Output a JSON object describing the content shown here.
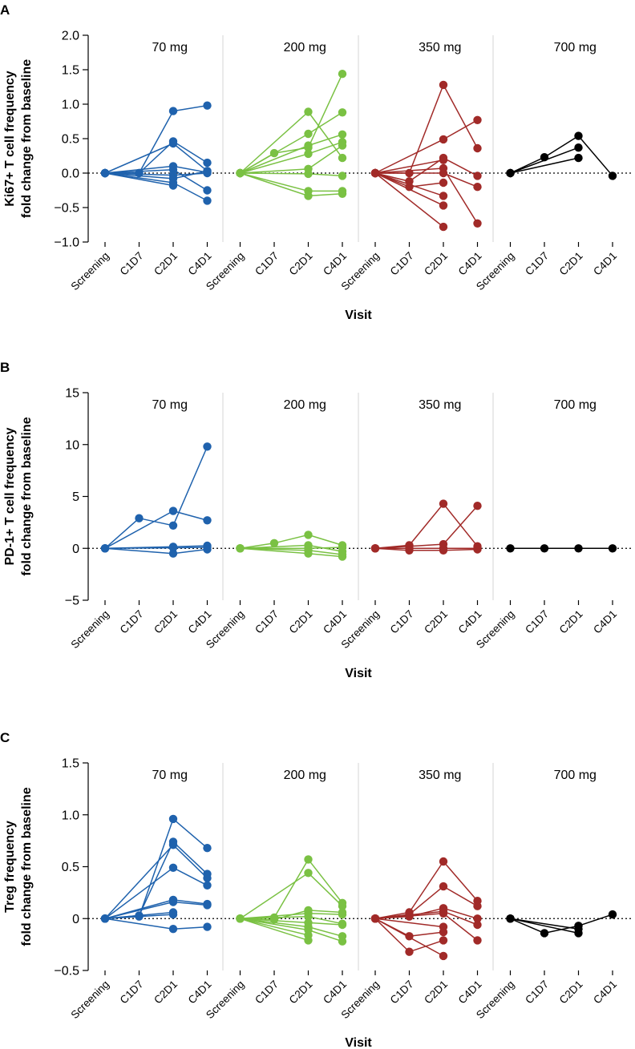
{
  "chart_data": [
    {
      "type": "line",
      "panel_label": "A",
      "ylabel_lines": [
        "Ki67+ T cell frequency",
        "fold change from baseline"
      ],
      "xlabel": "Visit",
      "ylim": [
        -1.0,
        2.0
      ],
      "yticks": [
        2.0,
        1.5,
        1.0,
        0.5,
        0.0,
        -0.5,
        -1.0
      ],
      "ytick_labels": [
        "2.0",
        "1.5",
        "1.0",
        "0.5",
        "0.0",
        "−0.5",
        "−1.0"
      ],
      "visits": [
        "Screening",
        "C1D7",
        "C2D1",
        "C4D1"
      ],
      "groups": [
        {
          "dose": "70 mg",
          "color": "#1f62ad",
          "series": [
            [
              0,
              0.0,
              0.9,
              0.98
            ],
            [
              0,
              0.0,
              0.46,
              0.15
            ],
            [
              0,
              null,
              0.43,
              0.03
            ],
            [
              0,
              null,
              0.1,
              0.01
            ],
            [
              0,
              null,
              0.05,
              -0.25
            ],
            [
              0,
              null,
              -0.03,
              0.0
            ],
            [
              0,
              null,
              -0.08,
              0.03
            ],
            [
              0,
              null,
              -0.14,
              -0.4
            ],
            [
              0,
              null,
              -0.18,
              null
            ]
          ]
        },
        {
          "dose": "200 mg",
          "color": "#7ac143",
          "series": [
            [
              0,
              0.29,
              0.37,
              1.44
            ],
            [
              0,
              null,
              0.89,
              0.22
            ],
            [
              0,
              null,
              0.57,
              0.88
            ],
            [
              0,
              null,
              0.4,
              0.56
            ],
            [
              0,
              null,
              0.28,
              0.45
            ],
            [
              0,
              null,
              0.06,
              0.4
            ],
            [
              0,
              null,
              -0.01,
              -0.04
            ],
            [
              0,
              null,
              -0.26,
              -0.26
            ],
            [
              0,
              null,
              -0.33,
              -0.3
            ]
          ]
        },
        {
          "dose": "350 mg",
          "color": "#a12a28",
          "series": [
            [
              0,
              0.0,
              1.28,
              0.36
            ],
            [
              0,
              null,
              0.49,
              0.77
            ],
            [
              0,
              -0.12,
              0.22,
              -0.04
            ],
            [
              0,
              null,
              0.19,
              null
            ],
            [
              0,
              null,
              0.07,
              -0.73
            ],
            [
              0,
              null,
              0.0,
              -0.2
            ],
            [
              0,
              -0.2,
              -0.14,
              null
            ],
            [
              0,
              null,
              -0.33,
              null
            ],
            [
              0,
              null,
              -0.47,
              null
            ],
            [
              0,
              null,
              -0.78,
              null
            ]
          ]
        },
        {
          "dose": "700 mg",
          "color": "#000000",
          "series": [
            [
              0,
              0.23,
              0.54,
              -0.04
            ],
            [
              0,
              null,
              0.37,
              null
            ],
            [
              0,
              null,
              0.22,
              null
            ]
          ]
        }
      ]
    },
    {
      "type": "line",
      "panel_label": "B",
      "ylabel_lines": [
        "PD-1+ T cell frequency",
        "fold change from baseline"
      ],
      "xlabel": "Visit",
      "ylim": [
        -5,
        15
      ],
      "yticks": [
        15,
        10,
        5,
        0,
        -5
      ],
      "ytick_labels": [
        "15",
        "10",
        "5",
        "0",
        "−5"
      ],
      "visits": [
        "Screening",
        "C1D7",
        "C2D1",
        "C4D1"
      ],
      "groups": [
        {
          "dose": "70 mg",
          "color": "#1f62ad",
          "series": [
            [
              0,
              2.9,
              2.2,
              9.8
            ],
            [
              0,
              null,
              3.6,
              2.7
            ],
            [
              0,
              null,
              0.15,
              0.25
            ],
            [
              0,
              null,
              0.05,
              0.1
            ],
            [
              0,
              null,
              -0.5,
              -0.1
            ]
          ]
        },
        {
          "dose": "200 mg",
          "color": "#7ac143",
          "series": [
            [
              0,
              0.5,
              1.3,
              0.3
            ],
            [
              0,
              null,
              0.3,
              -0.3
            ],
            [
              0,
              null,
              0.0,
              0.1
            ],
            [
              0,
              null,
              -0.2,
              -0.6
            ],
            [
              0,
              null,
              -0.5,
              -0.8
            ]
          ]
        },
        {
          "dose": "350 mg",
          "color": "#a12a28",
          "series": [
            [
              0,
              0.3,
              4.3,
              0.2
            ],
            [
              0,
              null,
              0.4,
              4.1
            ],
            [
              0,
              0.0,
              0.0,
              0.0
            ],
            [
              0,
              -0.2,
              -0.2,
              -0.1
            ]
          ]
        },
        {
          "dose": "700 mg",
          "color": "#000000",
          "series": [
            [
              0,
              0.0,
              0.0,
              0.0
            ]
          ]
        }
      ]
    },
    {
      "type": "line",
      "panel_label": "C",
      "ylabel_lines": [
        "Treg frequency",
        "fold change from baseline"
      ],
      "xlabel": "Visit",
      "ylim": [
        -0.5,
        1.5
      ],
      "yticks": [
        1.5,
        1.0,
        0.5,
        0.0,
        -0.5
      ],
      "ytick_labels": [
        "1.5",
        "1.0",
        "0.5",
        "0",
        "−0.5"
      ],
      "visits": [
        "Screening",
        "C1D7",
        "C2D1",
        "C4D1"
      ],
      "groups": [
        {
          "dose": "70 mg",
          "color": "#1f62ad",
          "series": [
            [
              0,
              0.02,
              0.96,
              0.68
            ],
            [
              0,
              0.03,
              0.74,
              0.43
            ],
            [
              0,
              null,
              0.71,
              0.39
            ],
            [
              0,
              null,
              0.49,
              0.32
            ],
            [
              0,
              null,
              0.18,
              0.14
            ],
            [
              0,
              null,
              0.16,
              0.13
            ],
            [
              0,
              null,
              0.06,
              null
            ],
            [
              0,
              null,
              0.04,
              null
            ],
            [
              0,
              null,
              -0.1,
              -0.08
            ]
          ]
        },
        {
          "dose": "200 mg",
          "color": "#7ac143",
          "series": [
            [
              0,
              0.01,
              0.57,
              0.15
            ],
            [
              0,
              null,
              0.44,
              0.12
            ],
            [
              0,
              -0.01,
              0.08,
              0.06
            ],
            [
              0,
              null,
              0.05,
              0.04
            ],
            [
              0,
              null,
              0.02,
              -0.05
            ],
            [
              0,
              null,
              -0.04,
              -0.06
            ],
            [
              0,
              null,
              -0.08,
              -0.17
            ],
            [
              0,
              null,
              -0.11,
              -0.22
            ],
            [
              0,
              null,
              -0.16,
              null
            ],
            [
              0,
              null,
              -0.21,
              null
            ]
          ]
        },
        {
          "dose": "350 mg",
          "color": "#a12a28",
          "series": [
            [
              0,
              0.06,
              0.55,
              0.17
            ],
            [
              0,
              0.04,
              0.31,
              0.12
            ],
            [
              0,
              0.02,
              0.1,
              0.0
            ],
            [
              0,
              null,
              0.07,
              -0.06
            ],
            [
              0,
              null,
              0.05,
              -0.21
            ],
            [
              0,
              null,
              -0.08,
              null
            ],
            [
              0,
              -0.17,
              -0.13,
              null
            ],
            [
              0,
              -0.32,
              -0.21,
              null
            ],
            [
              0,
              null,
              -0.36,
              null
            ]
          ]
        },
        {
          "dose": "700 mg",
          "color": "#000000",
          "series": [
            [
              0,
              -0.14,
              -0.07,
              0.04
            ],
            [
              0,
              null,
              -0.1,
              null
            ],
            [
              0,
              null,
              -0.14,
              null
            ]
          ]
        }
      ]
    }
  ]
}
